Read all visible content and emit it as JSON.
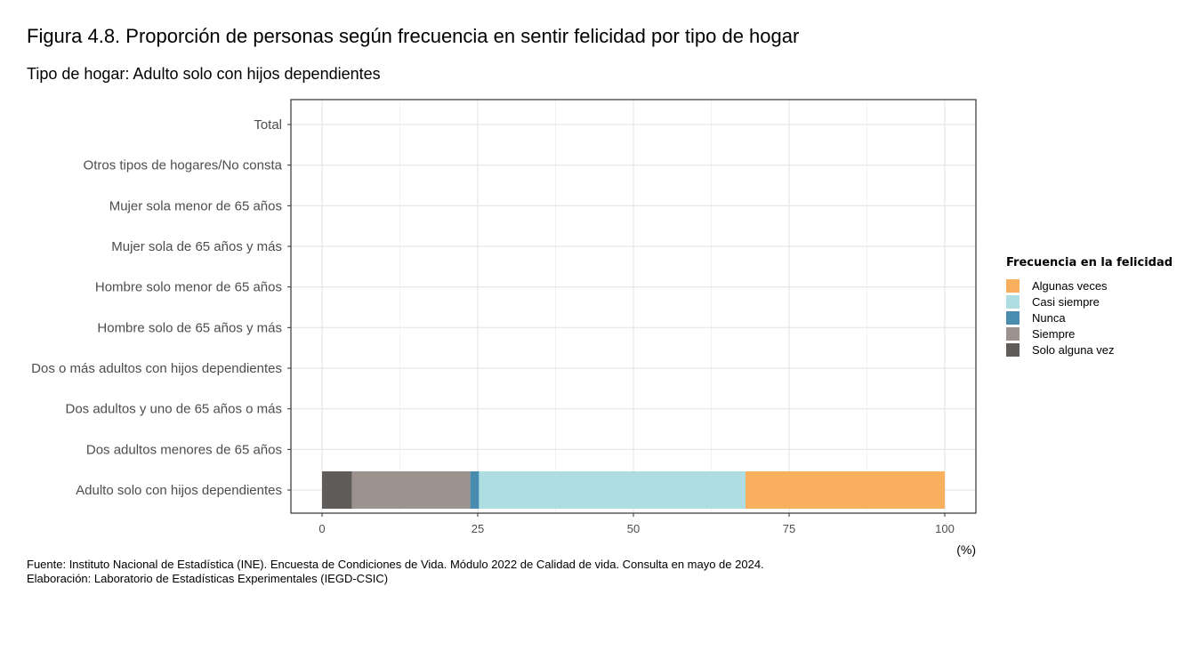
{
  "header": {
    "title": "Figura 4.8. Proporción de personas según frecuencia en sentir felicidad por tipo de hogar",
    "subtitle": "Tipo de hogar: Adulto solo con hijos dependientes"
  },
  "footer": {
    "source": "Fuente: Instituto Nacional de Estadística (INE). Encuesta de Condiciones de Vida. Módulo 2022 de Calidad de vida. Consulta en mayo de 2024.",
    "credit": "Elaboración: Laboratorio de Estadísticas Experimentales (IEGD-CSIC)"
  },
  "chart_data": {
    "type": "bar",
    "orientation": "horizontal",
    "stacked": true,
    "x_unit_label": "(%)",
    "xlim": [
      0,
      100
    ],
    "x_ticks": [
      0,
      25,
      50,
      75,
      100
    ],
    "grid": true,
    "legend_position": "right",
    "legend_title": "Frecuencia en la felicidad",
    "legend_order": [
      "Algunas veces",
      "Casi siempre",
      "Nunca",
      "Siempre",
      "Solo alguna vez"
    ],
    "categories": [
      "Total",
      "Otros tipos de hogares/No consta",
      "Mujer sola menor de 65 años",
      "Mujer sola de 65 años y más",
      "Hombre solo menor de 65 años",
      "Hombre solo de 65 años y más",
      "Dos o más adultos con hijos dependientes",
      "Dos adultos y uno de 65 años o más",
      "Dos adultos menores de 65 años",
      "Adulto solo con hijos dependientes"
    ],
    "stack_order": [
      "Solo alguna vez",
      "Siempre",
      "Nunca",
      "Casi siempre",
      "Algunas veces"
    ],
    "series": [
      {
        "name": "Algunas veces",
        "color": "#F8B05E",
        "values": [
          null,
          null,
          null,
          null,
          null,
          null,
          null,
          null,
          null,
          32.0
        ]
      },
      {
        "name": "Casi siempre",
        "color": "#AEDDE2",
        "values": [
          null,
          null,
          null,
          null,
          null,
          null,
          null,
          null,
          null,
          42.8
        ]
      },
      {
        "name": "Nunca",
        "color": "#4A8CB0",
        "values": [
          null,
          null,
          null,
          null,
          null,
          null,
          null,
          null,
          null,
          1.4
        ]
      },
      {
        "name": "Siempre",
        "color": "#9C938E",
        "values": [
          null,
          null,
          null,
          null,
          null,
          null,
          null,
          null,
          null,
          19.0
        ]
      },
      {
        "name": "Solo alguna vez",
        "color": "#605C5A",
        "values": [
          null,
          null,
          null,
          null,
          null,
          null,
          null,
          null,
          null,
          4.8
        ]
      }
    ]
  }
}
